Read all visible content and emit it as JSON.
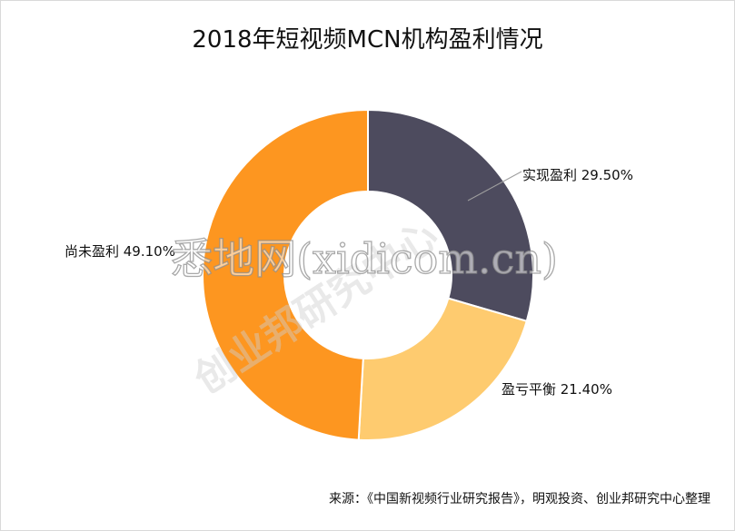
{
  "chart_data": {
    "type": "pie",
    "subtype": "donut",
    "title": "2018年短视频MCN机构盈利情况",
    "slices": [
      {
        "label": "实现盈利",
        "value": 29.5,
        "display": "29.50%",
        "color": "#4d4b5e"
      },
      {
        "label": "盈亏平衡",
        "value": 21.4,
        "display": "21.40%",
        "color": "#fecb6f"
      },
      {
        "label": "尚未盈利",
        "value": 49.1,
        "display": "49.10%",
        "color": "#fd9620"
      }
    ],
    "legend": "none"
  },
  "watermark": {
    "main": "悉地网(xidicom.cn)",
    "sub": "创业邦研究中心"
  },
  "source": "来源：《中国新视频行业研究报告》，明观投资、创业邦研究中心整理"
}
